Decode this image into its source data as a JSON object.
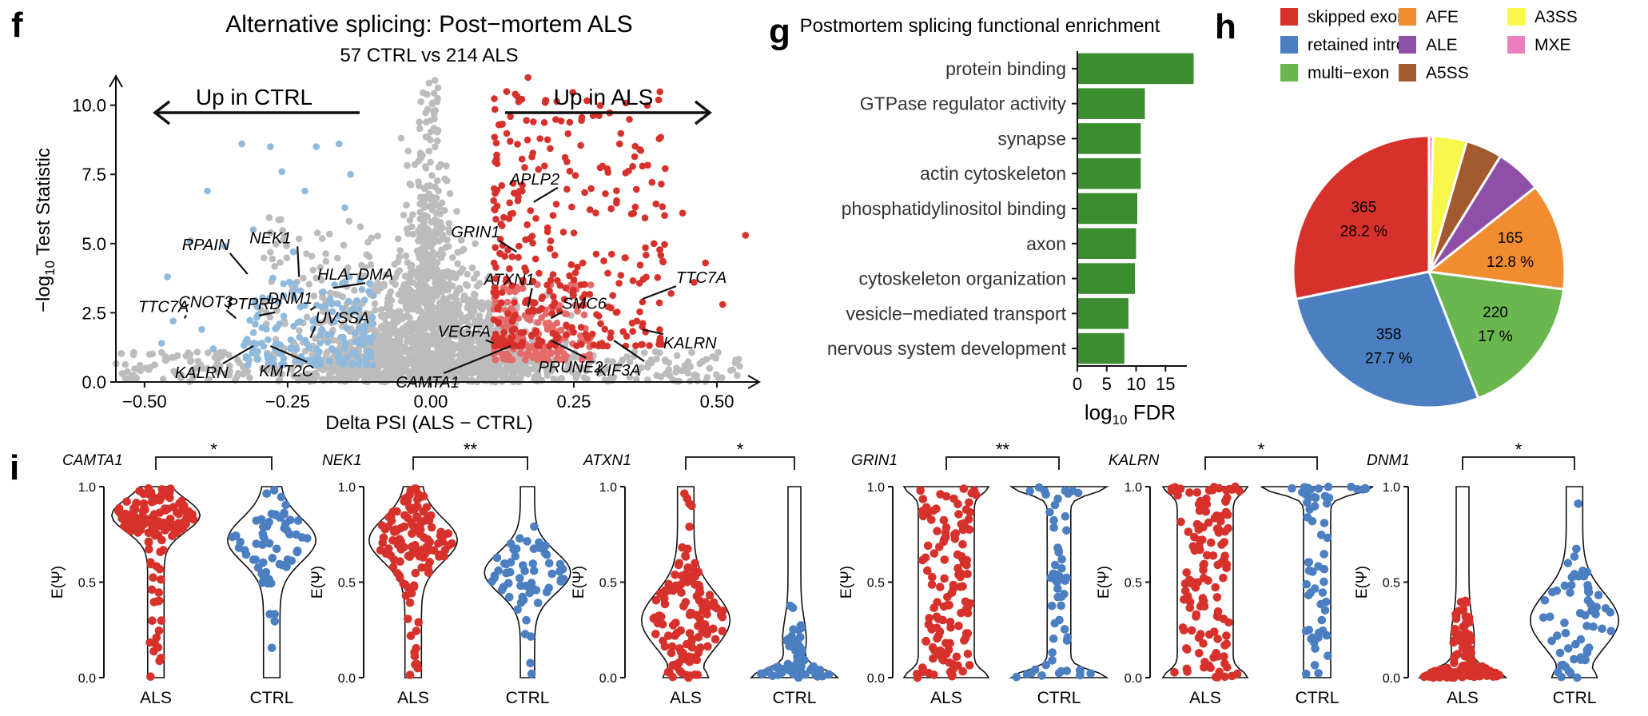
{
  "panel_labels": {
    "f": "f",
    "g": "g",
    "h": "h",
    "i": "i"
  },
  "colors": {
    "als": "#d7312c",
    "ctrl": "#4b7fc1",
    "als_light": "#e56a6a",
    "ctrl_light": "#8fb9dd",
    "grey": "#bcbcbc",
    "bar": "#3c8c30"
  },
  "chart_data": [
    {
      "type": "scatter",
      "panel": "f",
      "title": "Alternative splicing: Post−mortem ALS",
      "subtitle": "57 CTRL vs 214 ALS",
      "xlabel": "Delta PSI (ALS − CTRL)",
      "ylabel": "−log10 Test Statistic",
      "ylabel_main": "−log",
      "ylabel_sub": "10",
      "ylabel_rest": " Test Statistic",
      "xlim": [
        -0.55,
        0.56
      ],
      "ylim": [
        0,
        11
      ],
      "xticks": [
        -0.5,
        -0.25,
        0.0,
        0.25,
        0.5
      ],
      "xtick_labels": [
        "−0.50",
        "−0.25",
        "0.00",
        "0.25",
        "0.50"
      ],
      "yticks": [
        0,
        2.5,
        5,
        7.5,
        10
      ],
      "ytick_labels": [
        "0.0",
        "2.5",
        "5.0",
        "7.5",
        "10.0"
      ],
      "arrow_left_label": "Up in CTRL",
      "arrow_right_label": "Up in ALS",
      "groups": [
        "not significant",
        "up in CTRL",
        "up in ALS"
      ],
      "labeled_genes": [
        {
          "gene": "APLP2",
          "x": 0.18,
          "y": 6.5
        },
        {
          "gene": "GRIN1",
          "x": 0.15,
          "y": 4.7
        },
        {
          "gene": "NEK1",
          "x": -0.23,
          "y": 3.8
        },
        {
          "gene": "RPAIN",
          "x": -0.32,
          "y": 3.9
        },
        {
          "gene": "HLA−DMA",
          "x": -0.17,
          "y": 3.4
        },
        {
          "gene": "CNOT3",
          "x": -0.34,
          "y": 2.3
        },
        {
          "gene": "DNM1",
          "x": -0.21,
          "y": 2.6
        },
        {
          "gene": "PTPRD",
          "x": -0.3,
          "y": 2.4
        },
        {
          "gene": "TTC7A",
          "x": -0.43,
          "y": 2.3
        },
        {
          "gene": "UVSSA",
          "x": -0.21,
          "y": 1.6
        },
        {
          "gene": "KALRN",
          "x": -0.31,
          "y": 1.3
        },
        {
          "gene": "KMT2C",
          "x": -0.28,
          "y": 1.3
        },
        {
          "gene": "ATXN1",
          "x": 0.17,
          "y": 2.7
        },
        {
          "gene": "VEGFA",
          "x": 0.11,
          "y": 1.4
        },
        {
          "gene": "SMC6",
          "x": 0.21,
          "y": 2.3
        },
        {
          "gene": "CAMTA1",
          "x": 0.14,
          "y": 1.3
        },
        {
          "gene": "PRUNE2",
          "x": 0.21,
          "y": 1.5
        },
        {
          "gene": "TTC7A",
          "x": 0.37,
          "y": 3.0
        },
        {
          "gene": "KALRN",
          "x": 0.37,
          "y": 1.9
        },
        {
          "gene": "KIF3A",
          "x": 0.32,
          "y": 1.5
        }
      ]
    },
    {
      "type": "bar",
      "panel": "g",
      "orientation": "horizontal",
      "title": "Postmortem splicing functional enrichment",
      "xlabel_main": "log",
      "xlabel_sub": "10",
      "xlabel_rest": " FDR",
      "xlim": [
        0,
        20
      ],
      "xticks": [
        0,
        5,
        10,
        15
      ],
      "xtick_labels": [
        "0",
        "5",
        "10",
        "15"
      ],
      "categories": [
        "protein binding",
        "GTPase regulator activity",
        "synapse",
        "actin cytoskeleton",
        "phosphatidylinositol binding",
        "axon",
        "cytoskeleton organization",
        "vesicle−mediated transport",
        "nervous system development"
      ],
      "values": [
        19.8,
        11.5,
        10.8,
        10.8,
        10.2,
        10.0,
        9.8,
        8.7,
        8.0
      ]
    },
    {
      "type": "pie",
      "panel": "h",
      "legend_position": "top",
      "slices": [
        {
          "name": "skipped exon",
          "value": 365,
          "label": "365",
          "pct": "28.2 %",
          "color": "#d7312c"
        },
        {
          "name": "retained intron",
          "value": 358,
          "label": "358",
          "pct": "27.7 %",
          "color": "#4b7fc1"
        },
        {
          "name": "multi−exon",
          "value": 220,
          "label": "220",
          "pct": "17 %",
          "color": "#6ab64f"
        },
        {
          "name": "AFE",
          "value": 165,
          "label": "165",
          "pct": "12.8 %",
          "color": "#f18c30"
        },
        {
          "name": "ALE",
          "value": 71,
          "label": "",
          "pct": "",
          "color": "#8e50a6"
        },
        {
          "name": "A5SS",
          "value": 56,
          "label": "",
          "pct": "",
          "color": "#a25a2e"
        },
        {
          "name": "A3SS",
          "value": 52,
          "label": "",
          "pct": "",
          "color": "#f8f64b"
        },
        {
          "name": "MXE",
          "value": 6,
          "label": "",
          "pct": "",
          "color": "#ea7fbf"
        }
      ],
      "legend_order": [
        "skipped exon",
        "retained intron",
        "multi−exon",
        "AFE",
        "ALE",
        "A5SS",
        "A3SS",
        "MXE"
      ]
    },
    {
      "type": "scatter",
      "subtype": "violin-beeswarm",
      "panel": "i",
      "ylabel": "E(Ψ)",
      "ylim": [
        0,
        1
      ],
      "yticks": [
        0,
        0.5,
        1
      ],
      "ytick_labels": [
        "0.0",
        "0.5",
        "1.0"
      ],
      "groups": [
        "ALS",
        "CTRL"
      ],
      "plots": [
        {
          "gene": "CAMTA1",
          "signif": "*",
          "als_profile": "high",
          "ctrl_profile": "highmid"
        },
        {
          "gene": "NEK1",
          "signif": "**",
          "als_profile": "highmid",
          "ctrl_profile": "mid"
        },
        {
          "gene": "ATXN1",
          "signif": "*",
          "als_profile": "lowmid",
          "ctrl_profile": "low"
        },
        {
          "gene": "GRIN1",
          "signif": "**",
          "als_profile": "spread",
          "ctrl_profile": "bimodal"
        },
        {
          "gene": "KALRN",
          "signif": "*",
          "als_profile": "spread",
          "ctrl_profile": "topheavy"
        },
        {
          "gene": "DNM1",
          "signif": "*",
          "als_profile": "low",
          "ctrl_profile": "lowmid"
        }
      ]
    }
  ]
}
